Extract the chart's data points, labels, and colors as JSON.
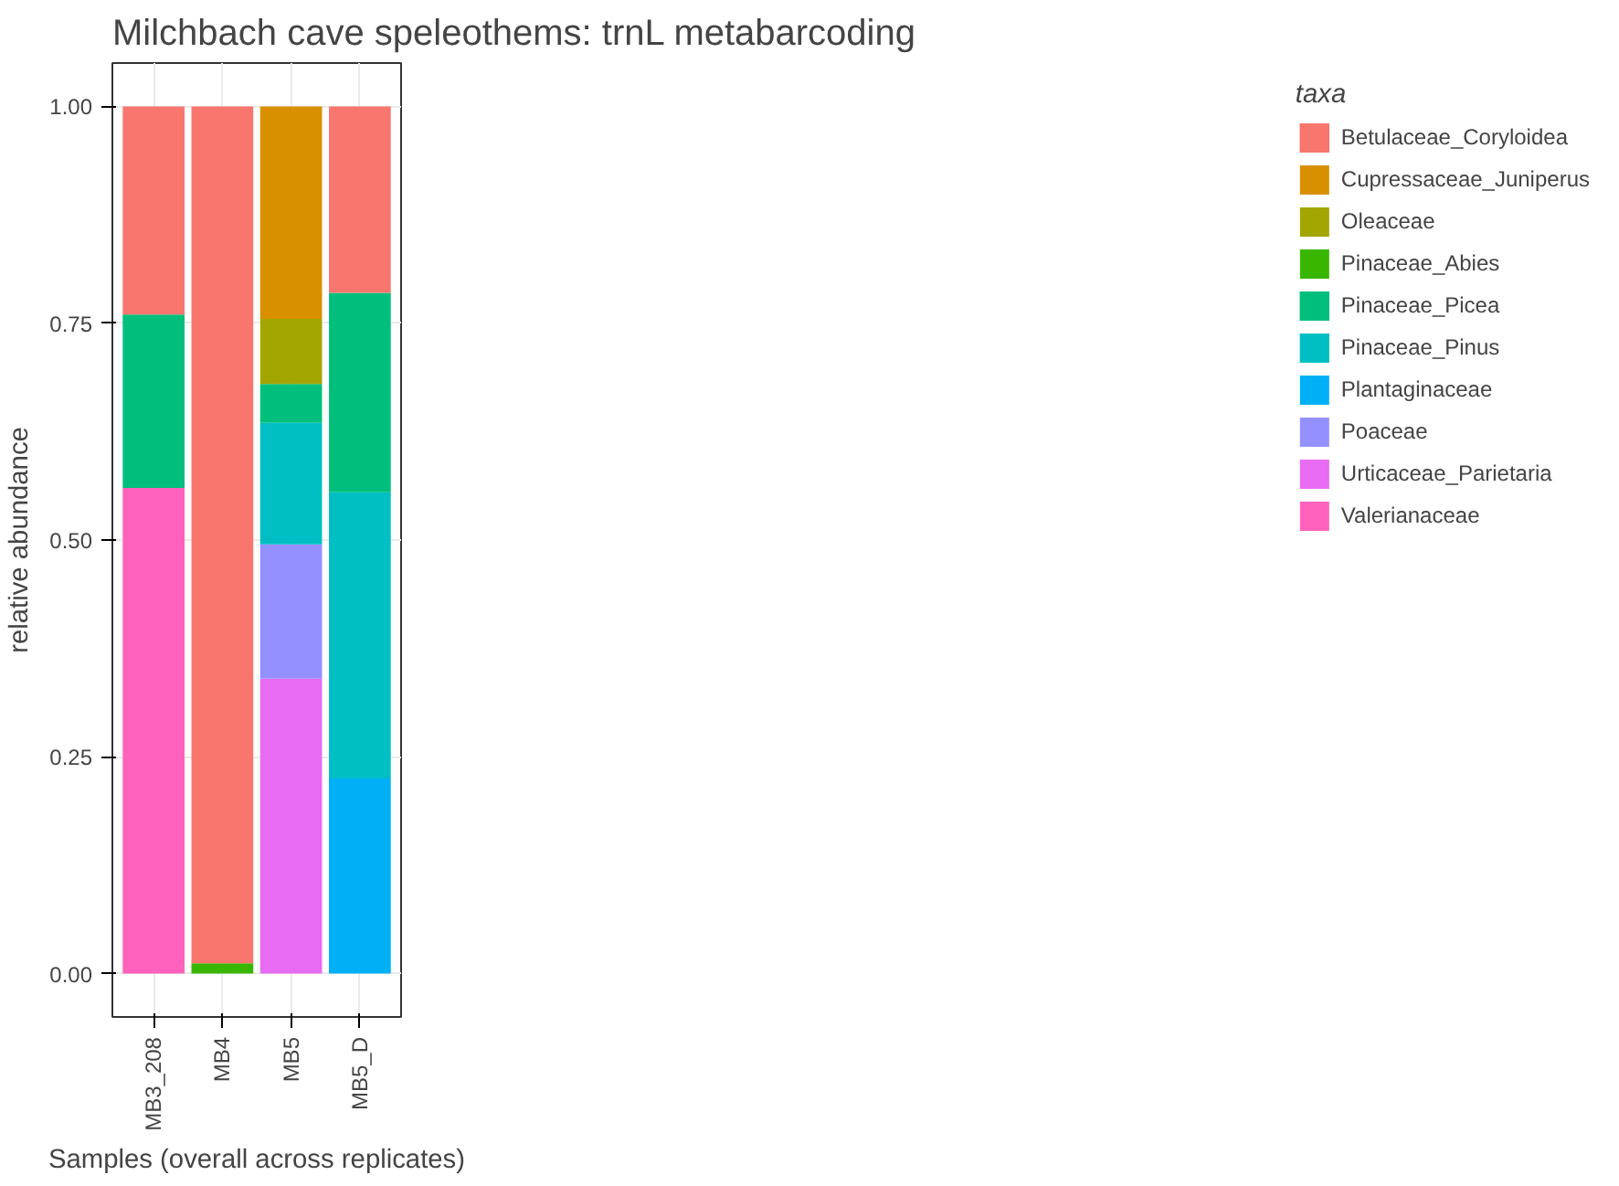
{
  "chart_data": {
    "type": "bar",
    "title": "Milchbach cave speleothems: trnL metabarcoding",
    "xlabel": "Samples (overall across replicates)",
    "ylabel": "relative abundance",
    "legend_title": "taxa",
    "categories": [
      "MB3_208",
      "MB4",
      "MB5",
      "MB5_D"
    ],
    "stacked": true,
    "ylim": [
      -0.05,
      1.05
    ],
    "yticks": [
      {
        "value": 0,
        "label": "0.00"
      },
      {
        "value": 0.25,
        "label": "0.25"
      },
      {
        "value": 0.5,
        "label": "0.50"
      },
      {
        "value": 0.75,
        "label": "0.75"
      },
      {
        "value": 1,
        "label": "1.00"
      }
    ],
    "grid": true,
    "legend": "right",
    "series": [
      {
        "name": "Valerianaceae",
        "color": "#ff62bc",
        "values": [
          0.56,
          null,
          null,
          null
        ]
      },
      {
        "name": "Urticaceae_Parietaria",
        "color": "#e76bf3",
        "values": [
          null,
          null,
          0.34,
          null
        ]
      },
      {
        "name": "Poaceae",
        "color": "#9590ff",
        "values": [
          null,
          null,
          0.155,
          null
        ]
      },
      {
        "name": "Plantaginaceae",
        "color": "#00b0f6",
        "values": [
          null,
          null,
          null,
          0.225
        ]
      },
      {
        "name": "Pinaceae_Pinus",
        "color": "#00bfc4",
        "values": [
          null,
          null,
          0.14,
          0.33
        ]
      },
      {
        "name": "Pinaceae_Picea",
        "color": "#00bf7d",
        "values": [
          0.2,
          null,
          0.045,
          0.23
        ]
      },
      {
        "name": "Pinaceae_Abies",
        "color": "#39b600",
        "values": [
          null,
          0.012,
          null,
          null
        ]
      },
      {
        "name": "Oleaceae",
        "color": "#a3a500",
        "values": [
          null,
          null,
          0.075,
          null
        ]
      },
      {
        "name": "Cupressaceae_Juniperus",
        "color": "#d89000",
        "values": [
          null,
          null,
          0.245,
          null
        ]
      },
      {
        "name": "Betulaceae_Coryloidea",
        "color": "#f8766d",
        "values": [
          0.24,
          0.988,
          null,
          0.215
        ]
      }
    ]
  }
}
